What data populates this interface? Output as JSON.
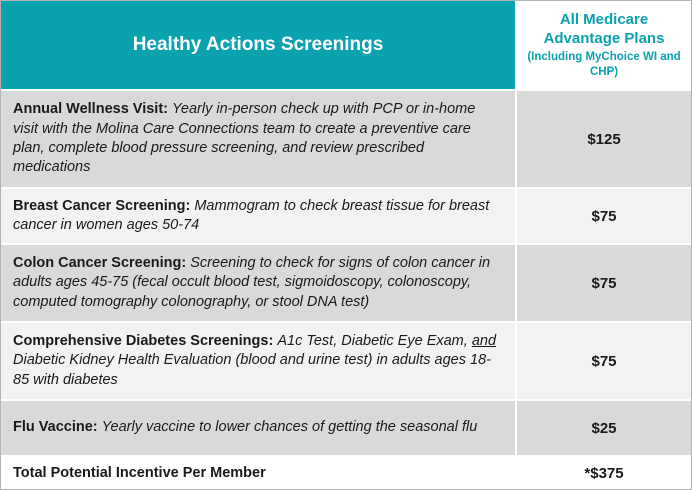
{
  "colors": {
    "teal": "#0AA2AE",
    "row_dark": "#D9D9D9",
    "row_light": "#F2F2F2",
    "header_text": "#FFFFFF"
  },
  "header": {
    "screenings_title": "Healthy Actions Screenings",
    "plans_title": "All Medicare Advantage Plans",
    "plans_subtitle": "(Including MyChoice WI and CHP)"
  },
  "rows": [
    {
      "title": "Annual Wellness Visit:",
      "desc_pre": "Yearly in-person check up with PCP or in-home visit with the Molina Care Connections team to create a preventive care plan, complete blood pressure screening, and review prescribed medications",
      "desc_underline": "",
      "desc_post": "",
      "value": "$125"
    },
    {
      "title": "Breast Cancer Screening:",
      "desc_pre": "Mammogram to check breast tissue for breast cancer in women ages 50-74",
      "desc_underline": "",
      "desc_post": "",
      "value": "$75"
    },
    {
      "title": "Colon Cancer Screening:",
      "desc_pre": "Screening to check for signs of colon cancer in adults ages 45-75 (fecal occult blood test, sigmoidoscopy, colonoscopy, computed tomography colonography, or stool DNA test)",
      "desc_underline": "",
      "desc_post": "",
      "value": "$75"
    },
    {
      "title": "Comprehensive Diabetes Screenings:",
      "desc_pre": "A1c Test, Diabetic Eye Exam,",
      "desc_underline": "and",
      "desc_post": "Diabetic Kidney Health Evaluation (blood and urine test) in adults ages 18-85 with diabetes",
      "value": "$75"
    },
    {
      "title": "Flu Vaccine:",
      "desc_pre": "Yearly vaccine to lower chances of getting the seasonal flu",
      "desc_underline": "",
      "desc_post": "",
      "value": "$25"
    }
  ],
  "total": {
    "label": "Total Potential Incentive Per Member",
    "value": "*$375"
  }
}
